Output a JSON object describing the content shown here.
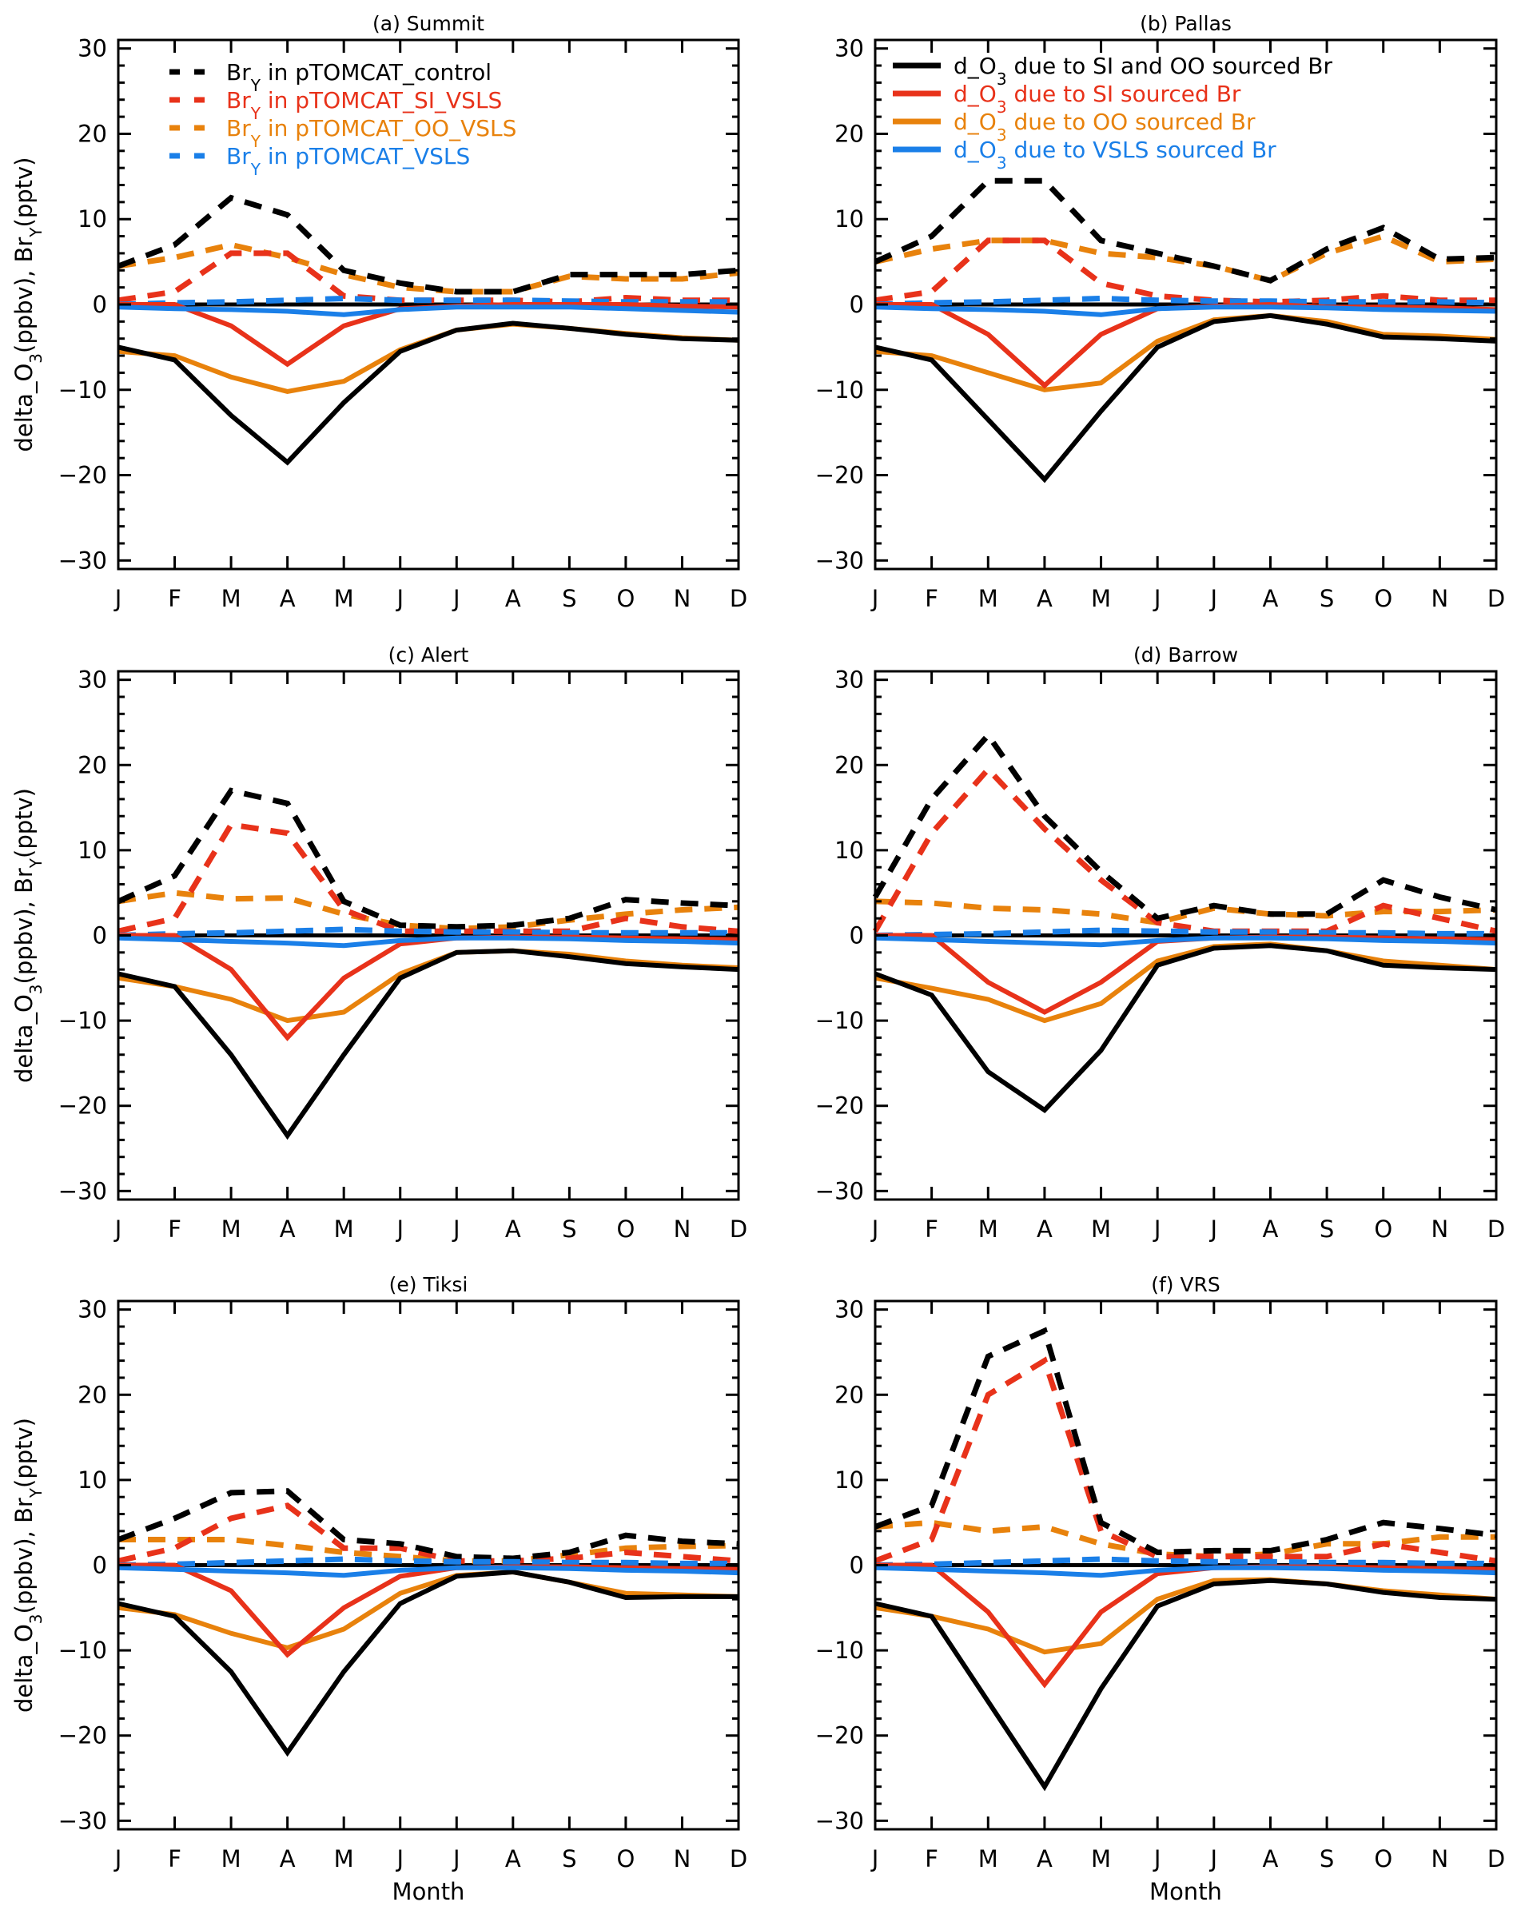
{
  "chart_data": {
    "type": "line",
    "x": [
      "J",
      "F",
      "M",
      "A",
      "M",
      "J",
      "J",
      "A",
      "S",
      "O",
      "N",
      "D"
    ],
    "xlabel": "Month",
    "ylabel": {
      "main": "delta_O",
      "sub": "3",
      "mid": "(ppbv),  Br",
      "sub2": "Y",
      "end": "(pptv)"
    },
    "ylim": [
      -31,
      31
    ],
    "yticks": [
      30,
      20,
      10,
      0,
      -10,
      -20,
      -30
    ],
    "ytick_labels": [
      "30",
      "20",
      "10",
      "0",
      "−10",
      "−20",
      "−30"
    ],
    "grid": false,
    "colors": {
      "control": "#000000",
      "si": "#e8321a",
      "oo": "#e8820c",
      "vsls": "#1a7fe8"
    },
    "legends": {
      "dashed": [
        {
          "key": "control",
          "main": "Br",
          "sub": "Y",
          "rest": "  in  pTOMCAT_control"
        },
        {
          "key": "si",
          "main": "Br",
          "sub": "Y",
          "rest": "  in  pTOMCAT_SI_VSLS"
        },
        {
          "key": "oo",
          "main": "Br",
          "sub": "Y",
          "rest": "  in  pTOMCAT_OO_VSLS"
        },
        {
          "key": "vsls",
          "main": "Br",
          "sub": "Y",
          "rest": "  in  pTOMCAT_VSLS"
        }
      ],
      "solid": [
        {
          "key": "control",
          "main": "d_O",
          "sub": "3",
          "rest": "  due  to  SI  and  OO  sourced  Br"
        },
        {
          "key": "si",
          "main": "d_O",
          "sub": "3",
          "rest": "  due  to  SI  sourced  Br"
        },
        {
          "key": "oo",
          "main": "d_O",
          "sub": "3",
          "rest": "  due  to  OO  sourced  Br"
        },
        {
          "key": "vsls",
          "main": "d_O",
          "sub": "3",
          "rest": "  due  to  VSLS  sourced  Br"
        }
      ]
    },
    "panels": [
      {
        "title": "(a)  Summit",
        "legend": "dashed",
        "dashed": {
          "control": [
            4.5,
            7,
            12.5,
            10.5,
            4,
            2.5,
            1.5,
            1.5,
            3.5,
            3.5,
            3.5,
            4
          ],
          "si": [
            0.5,
            1.5,
            6,
            6,
            1,
            0.5,
            0.5,
            0.5,
            0.3,
            0.8,
            0.5,
            0.5
          ],
          "oo": [
            4.5,
            5.5,
            7,
            5.5,
            3.5,
            2,
            1.5,
            1.5,
            3.3,
            3,
            3,
            3.7
          ],
          "vsls": [
            0,
            0.2,
            0.3,
            0.5,
            0.7,
            0.5,
            0.5,
            0.5,
            0.4,
            0.3,
            0.3,
            0.3
          ]
        },
        "solid": {
          "control": [
            -5,
            -6.5,
            -13,
            -18.5,
            -11.5,
            -5.5,
            -3,
            -2.2,
            -2.8,
            -3.5,
            -4,
            -4.2
          ],
          "si": [
            0,
            0,
            -2.5,
            -7,
            -2.5,
            -0.5,
            -0.2,
            0,
            0,
            0,
            -0.2,
            -0.3
          ],
          "oo": [
            -5.5,
            -6,
            -8.5,
            -10.2,
            -9,
            -5.3,
            -3,
            -2.3,
            -2.8,
            -3.4,
            -3.9,
            -4.2
          ],
          "vsls": [
            -0.3,
            -0.5,
            -0.6,
            -0.8,
            -1.2,
            -0.6,
            -0.3,
            -0.3,
            -0.3,
            -0.5,
            -0.7,
            -0.9
          ]
        }
      },
      {
        "title": "(b)  Pallas",
        "legend": "solid",
        "dashed": {
          "control": [
            5,
            8,
            14.5,
            14.5,
            7.5,
            6,
            4.5,
            2.8,
            6.5,
            9,
            5.3,
            5.5
          ],
          "si": [
            0.5,
            1.5,
            7.5,
            7.5,
            2.5,
            1,
            0.5,
            0.3,
            0.5,
            1,
            0.5,
            0.5
          ],
          "oo": [
            5,
            6.5,
            7.5,
            7.5,
            6,
            5.5,
            4.5,
            2.8,
            6,
            8,
            5,
            5.3
          ],
          "vsls": [
            0,
            0.2,
            0.3,
            0.5,
            0.7,
            0.5,
            0.4,
            0.4,
            0.3,
            0.3,
            0.3,
            0.2
          ]
        },
        "solid": {
          "control": [
            -5,
            -6.5,
            -13.5,
            -20.5,
            -12.5,
            -5,
            -2,
            -1.3,
            -2.3,
            -3.8,
            -4,
            -4.3
          ],
          "si": [
            0,
            0,
            -3.5,
            -9.5,
            -3.5,
            -0.5,
            -0.2,
            0,
            -0.3,
            -0.3,
            -0.4,
            -0.6
          ],
          "oo": [
            -5.5,
            -6,
            -8,
            -10,
            -9.2,
            -4.3,
            -1.8,
            -1.3,
            -2,
            -3.5,
            -3.7,
            -4.1
          ],
          "vsls": [
            -0.3,
            -0.5,
            -0.6,
            -0.8,
            -1.2,
            -0.5,
            -0.3,
            -0.3,
            -0.4,
            -0.6,
            -0.7,
            -0.8
          ]
        }
      },
      {
        "title": "(c)  Alert",
        "legend": "",
        "dashed": {
          "control": [
            4,
            7,
            17,
            15.5,
            4,
            1.2,
            1,
            1.2,
            2,
            4.2,
            3.8,
            3.5
          ],
          "si": [
            0.5,
            2,
            13,
            12,
            3,
            0.5,
            0.5,
            0.5,
            0.5,
            2,
            1,
            0.5
          ],
          "oo": [
            4,
            5,
            4.3,
            4.4,
            2.5,
            1.2,
            0.8,
            1,
            1.8,
            2.5,
            3,
            3.3
          ],
          "vsls": [
            0,
            0.2,
            0.3,
            0.5,
            0.7,
            0.5,
            0.4,
            0.4,
            0.3,
            0.3,
            0.3,
            0.3
          ]
        },
        "solid": {
          "control": [
            -4.5,
            -6,
            -14,
            -23.5,
            -14,
            -5,
            -2,
            -1.8,
            -2.5,
            -3.3,
            -3.7,
            -4
          ],
          "si": [
            0,
            0,
            -4,
            -12,
            -5,
            -1,
            -0.3,
            -0.2,
            -0.2,
            -0.3,
            -0.4,
            -0.5
          ],
          "oo": [
            -5,
            -6,
            -7.5,
            -10,
            -9,
            -4.5,
            -2,
            -1.8,
            -2.2,
            -3,
            -3.5,
            -3.8
          ],
          "vsls": [
            -0.3,
            -0.5,
            -0.7,
            -0.9,
            -1.2,
            -0.6,
            -0.3,
            -0.3,
            -0.4,
            -0.6,
            -0.7,
            -0.9
          ]
        }
      },
      {
        "title": "(d)  Barrow",
        "legend": "",
        "dashed": {
          "control": [
            4.5,
            16,
            23.5,
            14,
            7.5,
            2,
            3.5,
            2.5,
            2.5,
            6.5,
            4.5,
            3
          ],
          "si": [
            0.5,
            12,
            19.5,
            12.5,
            6.5,
            1.5,
            0.5,
            0.5,
            0.5,
            3.5,
            2,
            0.5
          ],
          "oo": [
            4,
            3.8,
            3.2,
            3,
            2.5,
            1.5,
            3.2,
            2.5,
            2.3,
            2.8,
            2.8,
            3
          ],
          "vsls": [
            0,
            0.1,
            0.2,
            0.4,
            0.6,
            0.5,
            0.4,
            0.4,
            0.3,
            0.3,
            0.2,
            0.2
          ]
        },
        "solid": {
          "control": [
            -4.5,
            -7,
            -16,
            -20.5,
            -13.5,
            -3.5,
            -1.5,
            -1.2,
            -1.8,
            -3.5,
            -3.8,
            -4
          ],
          "si": [
            0,
            0,
            -5.5,
            -9,
            -5.5,
            -0.7,
            -0.3,
            -0.2,
            -0.2,
            -0.3,
            -0.4,
            -0.5
          ],
          "oo": [
            -5,
            -6.2,
            -7.5,
            -10,
            -8,
            -3,
            -1.3,
            -1,
            -1.8,
            -3,
            -3.5,
            -4
          ],
          "vsls": [
            -0.3,
            -0.5,
            -0.7,
            -0.9,
            -1.1,
            -0.6,
            -0.3,
            -0.3,
            -0.4,
            -0.6,
            -0.7,
            -0.9
          ]
        }
      },
      {
        "title": "(e)  Tiksi",
        "legend": "",
        "dashed": {
          "control": [
            3,
            5.5,
            8.5,
            8.7,
            3,
            2.5,
            1,
            0.8,
            1.5,
            3.5,
            2.8,
            2.5
          ],
          "si": [
            0.5,
            2,
            5.5,
            7,
            2,
            2,
            0.5,
            0.5,
            0.8,
            1.5,
            1,
            0.5
          ],
          "oo": [
            3,
            3,
            3,
            2.3,
            1.5,
            1,
            0.5,
            0.5,
            1.2,
            2,
            2.2,
            2.3
          ],
          "vsls": [
            0,
            0.1,
            0.3,
            0.5,
            0.7,
            0.5,
            0.4,
            0.4,
            0.3,
            0.3,
            0.2,
            0.2
          ]
        },
        "solid": {
          "control": [
            -4.5,
            -6,
            -12.5,
            -22,
            -12.5,
            -4.5,
            -1.3,
            -0.8,
            -2,
            -3.8,
            -3.7,
            -3.7
          ],
          "si": [
            0,
            0,
            -3,
            -10.5,
            -5,
            -1.3,
            -0.3,
            -0.2,
            -0.2,
            -0.3,
            -0.4,
            -0.5
          ],
          "oo": [
            -5,
            -5.8,
            -8,
            -9.7,
            -7.5,
            -3.3,
            -1.2,
            -0.8,
            -2,
            -3.3,
            -3.5,
            -3.7
          ],
          "vsls": [
            -0.3,
            -0.5,
            -0.7,
            -0.9,
            -1.2,
            -0.6,
            -0.3,
            -0.3,
            -0.4,
            -0.6,
            -0.7,
            -0.9
          ]
        }
      },
      {
        "title": "(f)  VRS",
        "legend": "",
        "dashed": {
          "control": [
            4.5,
            7,
            24.5,
            27.5,
            5,
            1.5,
            1.7,
            1.7,
            3,
            5,
            4.3,
            3.5
          ],
          "si": [
            0.5,
            3,
            20,
            24,
            4,
            1,
            1,
            1,
            1,
            2.5,
            1.5,
            0.5
          ],
          "oo": [
            4.5,
            5,
            4,
            4.5,
            2.5,
            1.3,
            1,
            1.3,
            2.5,
            2.5,
            3.3,
            3.3
          ],
          "vsls": [
            0,
            0.1,
            0.3,
            0.5,
            0.7,
            0.5,
            0.4,
            0.4,
            0.3,
            0.3,
            0.2,
            0.2
          ]
        },
        "solid": {
          "control": [
            -4.5,
            -6,
            -16,
            -26,
            -14.5,
            -4.8,
            -2.2,
            -1.8,
            -2.2,
            -3.2,
            -3.8,
            -4
          ],
          "si": [
            0,
            0,
            -5.5,
            -14,
            -5.5,
            -1,
            -0.3,
            -0.2,
            -0.2,
            -0.3,
            -0.4,
            -0.5
          ],
          "oo": [
            -5,
            -6,
            -7.5,
            -10.2,
            -9.2,
            -4,
            -1.8,
            -1.7,
            -2.2,
            -3,
            -3.5,
            -4
          ],
          "vsls": [
            -0.3,
            -0.5,
            -0.7,
            -0.9,
            -1.2,
            -0.6,
            -0.3,
            -0.3,
            -0.4,
            -0.6,
            -0.7,
            -0.9
          ]
        }
      }
    ]
  }
}
